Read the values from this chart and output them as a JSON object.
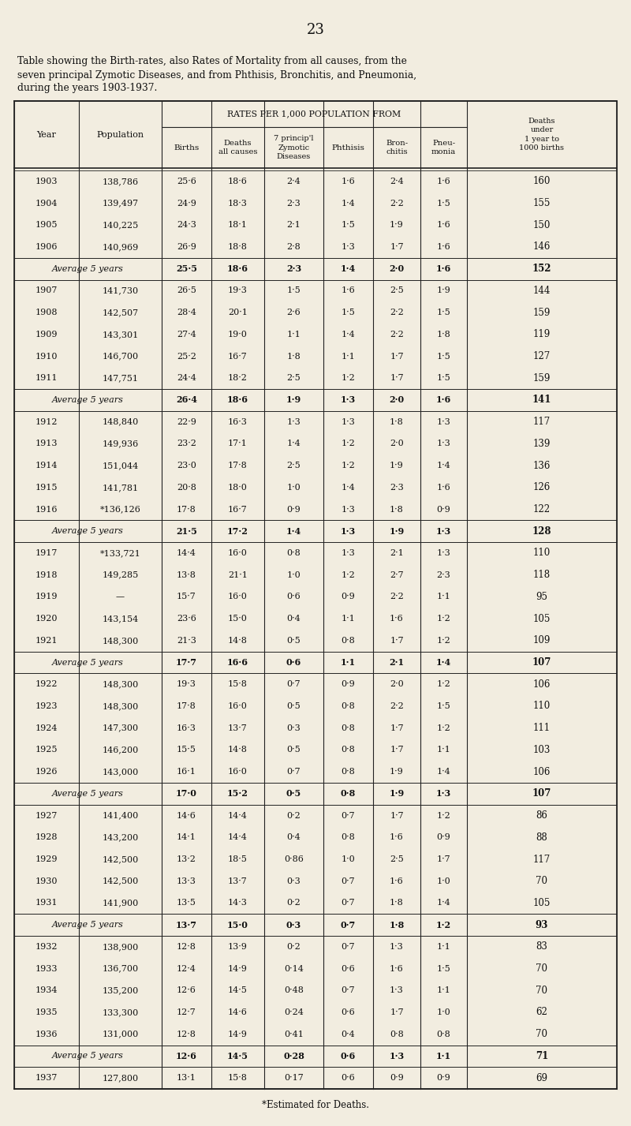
{
  "page_number": "23",
  "title_text": "Table showing the Birth-rates, also Rates of Mortality from all causes, from the\nseven principal Zymotic Diseases, and from Phthisis, Bronchitis, and Pneumonia,\nduring the years 1903-1937.",
  "footer_text": "*Estimated for Deaths.",
  "bg_color": "#f2ede0",
  "rows": [
    [
      "1903",
      "138,786",
      "25·6",
      "18·6",
      "2·4",
      "1·6",
      "2·4",
      "1·6",
      "160",
      false
    ],
    [
      "1904",
      "139,497",
      "24·9",
      "18·3",
      "2·3",
      "1·4",
      "2·2",
      "1·5",
      "155",
      false
    ],
    [
      "1905",
      "140,225",
      "24·3",
      "18·1",
      "2·1",
      "1·5",
      "1·9",
      "1·6",
      "150",
      false
    ],
    [
      "1906",
      "140,969",
      "26·9",
      "18·8",
      "2·8",
      "1·3",
      "1·7",
      "1·6",
      "146",
      false
    ],
    [
      "Average 5 years",
      "",
      "25·5",
      "18·6",
      "2·3",
      "1·4",
      "2·0",
      "1·6",
      "152",
      true
    ],
    [
      "1907",
      "141,730",
      "26·5",
      "19·3",
      "1·5",
      "1·6",
      "2·5",
      "1·9",
      "144",
      false
    ],
    [
      "1908",
      "142,507",
      "28·4",
      "20·1",
      "2·6",
      "1·5",
      "2·2",
      "1·5",
      "159",
      false
    ],
    [
      "1909",
      "143,301",
      "27·4",
      "19·0",
      "1·1",
      "1·4",
      "2·2",
      "1·8",
      "119",
      false
    ],
    [
      "1910",
      "146,700",
      "25·2",
      "16·7",
      "1·8",
      "1·1",
      "1·7",
      "1·5",
      "127",
      false
    ],
    [
      "1911",
      "147,751",
      "24·4",
      "18·2",
      "2·5",
      "1·2",
      "1·7",
      "1·5",
      "159",
      false
    ],
    [
      "Average 5 years",
      "",
      "26·4",
      "18·6",
      "1·9",
      "1·3",
      "2·0",
      "1·6",
      "141",
      true
    ],
    [
      "1912",
      "148,840",
      "22·9",
      "16·3",
      "1·3",
      "1·3",
      "1·8",
      "1·3",
      "117",
      false
    ],
    [
      "1913",
      "149,936",
      "23·2",
      "17·1",
      "1·4",
      "1·2",
      "2·0",
      "1·3",
      "139",
      false
    ],
    [
      "1914",
      "151,044",
      "23·0",
      "17·8",
      "2·5",
      "1·2",
      "1·9",
      "1·4",
      "136",
      false
    ],
    [
      "1915",
      "141,781",
      "20·8",
      "18·0",
      "1·0",
      "1·4",
      "2·3",
      "1·6",
      "126",
      false
    ],
    [
      "1916",
      "*136,126",
      "17·8",
      "16·7",
      "0·9",
      "1·3",
      "1·8",
      "0·9",
      "122",
      false
    ],
    [
      "Average 5 years",
      "",
      "21·5",
      "17·2",
      "1·4",
      "1·3",
      "1·9",
      "1·3",
      "128",
      true
    ],
    [
      "1917",
      "*133,721",
      "14·4",
      "16·0",
      "0·8",
      "1·3",
      "2·1",
      "1·3",
      "110",
      false
    ],
    [
      "1918",
      "149,285",
      "13·8",
      "21·1",
      "1·0",
      "1·2",
      "2·7",
      "2·3",
      "118",
      false
    ],
    [
      "1919",
      "—",
      "15·7",
      "16·0",
      "0·6",
      "0·9",
      "2·2",
      "1·1",
      "95",
      false
    ],
    [
      "1920",
      "143,154",
      "23·6",
      "15·0",
      "0·4",
      "1·1",
      "1·6",
      "1·2",
      "105",
      false
    ],
    [
      "1921",
      "148,300",
      "21·3",
      "14·8",
      "0·5",
      "0·8",
      "1·7",
      "1·2",
      "109",
      false
    ],
    [
      "Average 5 years",
      "",
      "17·7",
      "16·6",
      "0·6",
      "1·1",
      "2·1",
      "1·4",
      "107",
      true
    ],
    [
      "1922",
      "148,300",
      "19·3",
      "15·8",
      "0·7",
      "0·9",
      "2·0",
      "1·2",
      "106",
      false
    ],
    [
      "1923",
      "148,300",
      "17·8",
      "16·0",
      "0·5",
      "0·8",
      "2·2",
      "1·5",
      "110",
      false
    ],
    [
      "1924",
      "147,300",
      "16·3",
      "13·7",
      "0·3",
      "0·8",
      "1·7",
      "1·2",
      "111",
      false
    ],
    [
      "1925",
      "146,200",
      "15·5",
      "14·8",
      "0·5",
      "0·8",
      "1·7",
      "1·1",
      "103",
      false
    ],
    [
      "1926",
      "143,000",
      "16·1",
      "16·0",
      "0·7",
      "0·8",
      "1·9",
      "1·4",
      "106",
      false
    ],
    [
      "Average 5 years",
      "",
      "17·0",
      "15·2",
      "0·5",
      "0·8",
      "1·9",
      "1·3",
      "107",
      true
    ],
    [
      "1927",
      "141,400",
      "14·6",
      "14·4",
      "0·2",
      "0·7",
      "1·7",
      "1·2",
      "86",
      false
    ],
    [
      "1928",
      "143,200",
      "14·1",
      "14·4",
      "0·4",
      "0·8",
      "1·6",
      "0·9",
      "88",
      false
    ],
    [
      "1929",
      "142,500",
      "13·2",
      "18·5",
      "0·86",
      "1·0",
      "2·5",
      "1·7",
      "117",
      false
    ],
    [
      "1930",
      "142,500",
      "13·3",
      "13·7",
      "0·3",
      "0·7",
      "1·6",
      "1·0",
      "70",
      false
    ],
    [
      "1931",
      "141,900",
      "13·5",
      "14·3",
      "0·2",
      "0·7",
      "1·8",
      "1·4",
      "105",
      false
    ],
    [
      "Average 5 years",
      "",
      "13·7",
      "15·0",
      "0·3",
      "0·7",
      "1·8",
      "1·2",
      "93",
      true
    ],
    [
      "1932",
      "138,900",
      "12·8",
      "13·9",
      "0·2",
      "0·7",
      "1·3",
      "1·1",
      "83",
      false
    ],
    [
      "1933",
      "136,700",
      "12·4",
      "14·9",
      "0·14",
      "0·6",
      "1·6",
      "1·5",
      "70",
      false
    ],
    [
      "1934",
      "135,200",
      "12·6",
      "14·5",
      "0·48",
      "0·7",
      "1·3",
      "1·1",
      "70",
      false
    ],
    [
      "1935",
      "133,300",
      "12·7",
      "14·6",
      "0·24",
      "0·6",
      "1·7",
      "1·0",
      "62",
      false
    ],
    [
      "1936",
      "131,000",
      "12·8",
      "14·9",
      "0·41",
      "0·4",
      "0·8",
      "0·8",
      "70",
      false
    ],
    [
      "Average 5 years",
      "",
      "12·6",
      "14·5",
      "0·28",
      "0·6",
      "1·3",
      "1·1",
      "71",
      true
    ],
    [
      "1937",
      "127,800",
      "13·1",
      "15·8",
      "0·17",
      "0·6",
      "0·9",
      "0·9",
      "69",
      false
    ]
  ]
}
